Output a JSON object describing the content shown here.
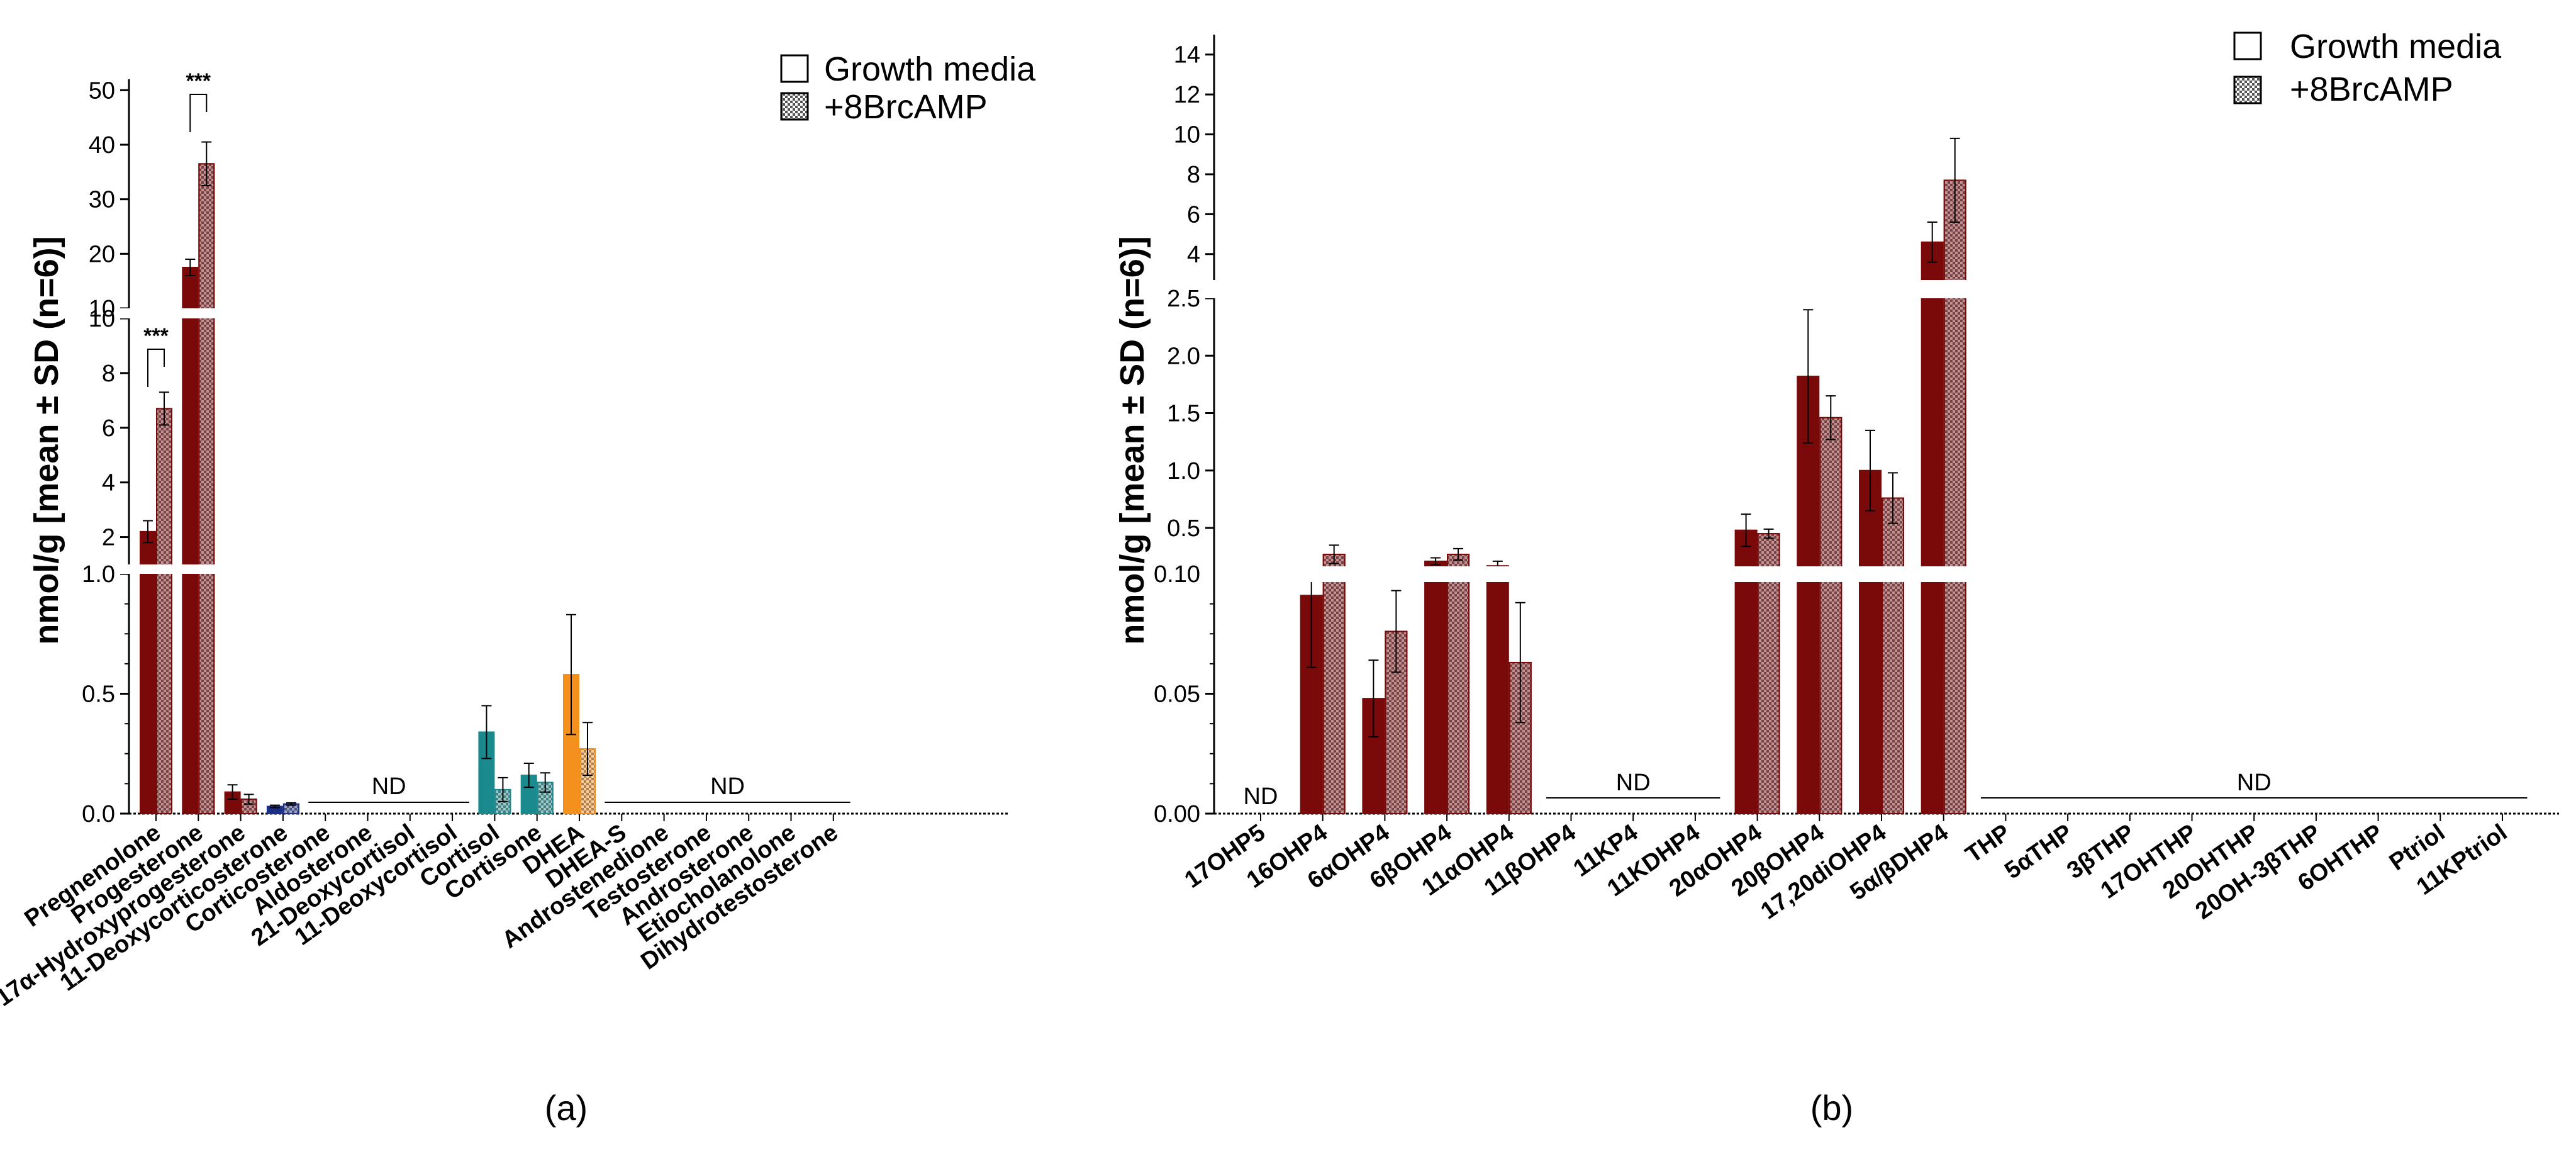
{
  "legend": {
    "items": [
      "Growth media",
      "+8BrcAMP"
    ]
  },
  "colors": {
    "dark_red": "#7a0a0a",
    "teal": "#1b8a8f",
    "navy": "#1c2f86",
    "orange": "#f4901e"
  },
  "chart_data": [
    {
      "type": "bar",
      "panel_label": "(a)",
      "ylabel": "nmol/g [mean ± SD (n=6)]",
      "y_segments": [
        {
          "range": [
            0,
            1.0
          ],
          "ticks": [
            "0.0",
            "0.5",
            "1.0"
          ]
        },
        {
          "range": [
            1,
            10
          ],
          "ticks": [
            "2",
            "4",
            "6",
            "8",
            "10"
          ]
        },
        {
          "range": [
            10,
            52
          ],
          "ticks": [
            "10",
            "20",
            "30",
            "40",
            "50"
          ]
        }
      ],
      "categories": [
        "Pregnenolone",
        "Progesterone",
        "17α-Hydroxyprogesterone",
        "11-Deoxycorticosterone",
        "Corticosterone",
        "Aldosterone",
        "21-Deoxycortisol",
        "11-Deoxycortisol",
        "Cortisol",
        "Cortisone",
        "DHEA",
        "DHEA-S",
        "Androstenedione",
        "Testosterone",
        "Androsterone",
        "Etiocholanolone",
        "Dihydrotestosterone"
      ],
      "bar_colors": [
        "dark_red",
        "dark_red",
        "dark_red",
        "navy",
        null,
        null,
        null,
        null,
        "teal",
        "teal",
        "orange",
        null,
        null,
        null,
        null,
        null,
        null
      ],
      "series": [
        {
          "name": "Growth media",
          "values": [
            2.2,
            17.5,
            0.09,
            0.03,
            null,
            null,
            null,
            null,
            0.34,
            0.16,
            0.58,
            null,
            null,
            null,
            null,
            null,
            null
          ],
          "errors": [
            0.4,
            1.5,
            0.03,
            0.005,
            null,
            null,
            null,
            null,
            0.11,
            0.05,
            0.25,
            null,
            null,
            null,
            null,
            null,
            null
          ]
        },
        {
          "name": "+8BrcAMP",
          "values": [
            6.7,
            36.5,
            0.06,
            0.04,
            null,
            null,
            null,
            null,
            0.1,
            0.13,
            0.27,
            null,
            null,
            null,
            null,
            null,
            null
          ],
          "errors": [
            0.6,
            4.0,
            0.02,
            0.005,
            null,
            null,
            null,
            null,
            0.05,
            0.04,
            0.11,
            null,
            null,
            null,
            null,
            null,
            null
          ]
        }
      ],
      "nd_groups": [
        {
          "label": "ND",
          "from": "Corticosterone",
          "to": "11-Deoxycortisol"
        },
        {
          "label": "ND",
          "from": "DHEA-S",
          "to": "Dihydrotestosterone"
        }
      ],
      "significance": [
        {
          "category": "Pregnenolone",
          "label": "***"
        },
        {
          "category": "Progesterone",
          "label": "***"
        }
      ]
    },
    {
      "type": "bar",
      "panel_label": "(b)",
      "ylabel": "nmol/g [mean ± SD (n=6)]",
      "y_segments": [
        {
          "range": [
            0,
            0.1
          ],
          "ticks": [
            "0.00",
            "0.05",
            "0.10"
          ]
        },
        {
          "range": [
            0.1,
            2.5
          ],
          "ticks": [
            "0.5",
            "1.0",
            "1.5",
            "2.0",
            "2.5"
          ]
        },
        {
          "range": [
            2.7,
            15
          ],
          "ticks": [
            "4",
            "6",
            "8",
            "10",
            "12",
            "14"
          ]
        }
      ],
      "categories": [
        "17OHP5",
        "16OHP4",
        "6αOHP4",
        "6βOHP4",
        "11αOHP4",
        "11βOHP4",
        "11KP4",
        "11KDHP4",
        "20αOHP4",
        "20βOHP4",
        "17,20diOHP4",
        "5α/βDHP4",
        "THP",
        "5αTHP",
        "3βTHP",
        "17OHTHP",
        "20OHTHP",
        "20OH-3βTHP",
        "6OHTHP",
        "Ptriol",
        "11KPtriol"
      ],
      "series": [
        {
          "name": "Growth media",
          "values": [
            null,
            0.091,
            0.048,
            0.21,
            0.17,
            null,
            null,
            null,
            0.48,
            1.82,
            1.0,
            4.6,
            null,
            null,
            null,
            null,
            null,
            null,
            null,
            null,
            null
          ],
          "errors": [
            null,
            0.03,
            0.016,
            0.03,
            0.04,
            null,
            null,
            null,
            0.14,
            0.58,
            0.35,
            1.0,
            null,
            null,
            null,
            null,
            null,
            null,
            null,
            null,
            null
          ]
        },
        {
          "name": "+8BrcAMP",
          "values": [
            null,
            0.27,
            0.076,
            0.27,
            0.063,
            null,
            null,
            null,
            0.45,
            1.46,
            0.76,
            7.7,
            null,
            null,
            null,
            null,
            null,
            null,
            null,
            null,
            null
          ],
          "errors": [
            null,
            0.08,
            0.017,
            0.05,
            0.025,
            null,
            null,
            null,
            0.04,
            0.19,
            0.22,
            2.1,
            null,
            null,
            null,
            null,
            null,
            null,
            null,
            null,
            null
          ]
        }
      ],
      "nd_groups": [
        {
          "label": "ND",
          "from": "17OHP5",
          "to": "17OHP5"
        },
        {
          "label": "ND",
          "from": "11βOHP4",
          "to": "11KDHP4"
        },
        {
          "label": "ND",
          "from": "THP",
          "to": "11KPtriol"
        }
      ]
    }
  ]
}
